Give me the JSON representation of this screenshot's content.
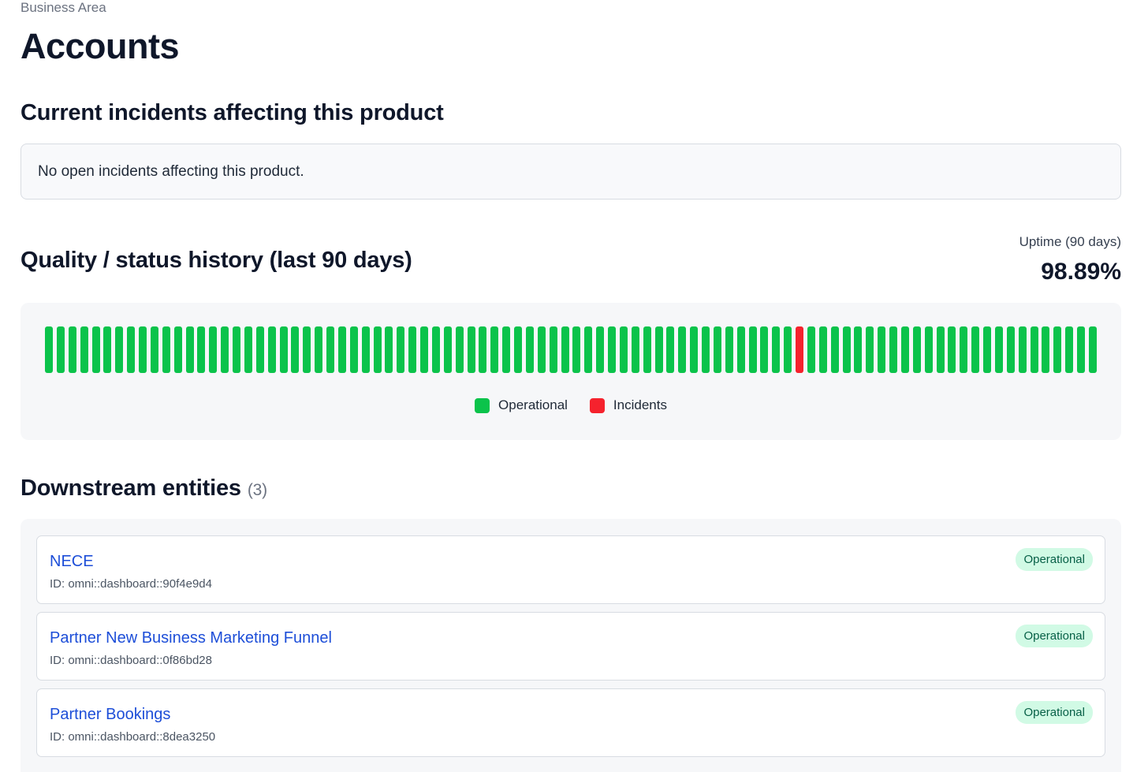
{
  "breadcrumb": "Business Area",
  "title": "Accounts",
  "incidents": {
    "heading": "Current incidents affecting this product",
    "message": "No open incidents affecting this product."
  },
  "history": {
    "heading": "Quality / status history (last 90 days)",
    "uptime_label": "Uptime (90 days)",
    "uptime_value": "98.89%",
    "days": 90,
    "incident_day_index": 64,
    "colors": {
      "operational": "#0bc34b",
      "incident": "#f5222d"
    },
    "legend": {
      "operational": "Operational",
      "incidents": "Incidents"
    }
  },
  "downstream": {
    "heading": "Downstream entities",
    "count": "(3)",
    "entities": [
      {
        "name": "NECE",
        "id": "ID: omni::dashboard::90f4e9d4",
        "status": "Operational"
      },
      {
        "name": "Partner New Business Marketing Funnel",
        "id": "ID: omni::dashboard::0f86bd28",
        "status": "Operational"
      },
      {
        "name": "Partner Bookings",
        "id": "ID: omni::dashboard::8dea3250",
        "status": "Operational"
      }
    ]
  }
}
